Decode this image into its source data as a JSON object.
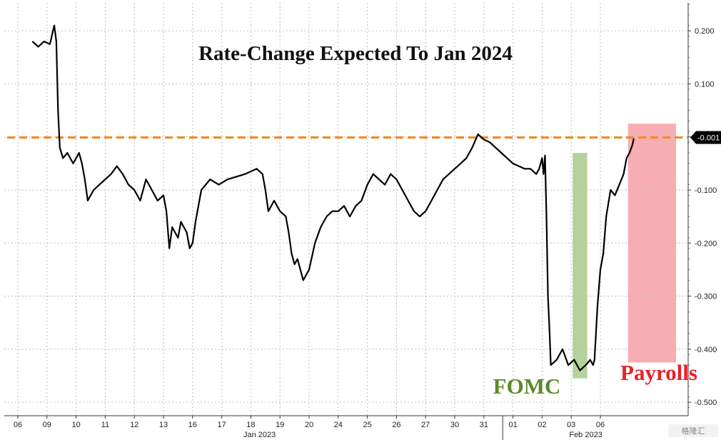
{
  "chart_data": {
    "type": "line",
    "title": "Rate-Change Expected To Jan 2024",
    "ylim": [
      -0.52,
      0.25
    ],
    "yticks": [
      0.2,
      0.1,
      0.0,
      -0.1,
      -0.2,
      -0.3,
      -0.4,
      -0.5
    ],
    "ytick_labels": [
      "0.200",
      "0.100",
      "",
      "-0.100",
      "-0.200",
      "-0.300",
      "-0.400",
      "-0.500"
    ],
    "x_day_labels": [
      "06",
      "09",
      "10",
      "11",
      "12",
      "13",
      "16",
      "17",
      "18",
      "19",
      "20",
      "24",
      "25",
      "26",
      "27",
      "30",
      "31",
      "01",
      "02",
      "03",
      "06"
    ],
    "month_labels": [
      "Jan 2023",
      "Feb 2023"
    ],
    "last_value_label": "-0.001",
    "reference_line": {
      "value": -0.001,
      "color": "#f08a24",
      "style": "dashed"
    },
    "annotations": [
      {
        "label": "FOMC",
        "x_start": 19.05,
        "x_end": 19.55,
        "color": "#a9c98a"
      },
      {
        "label": "Payrolls",
        "x_start": 20.95,
        "x_end": 22.6,
        "color": "#f4a0a6"
      }
    ],
    "series": [
      {
        "color": "#000000",
        "points": [
          [
            -0.5,
            0.18
          ],
          [
            -0.3,
            0.17
          ],
          [
            -0.1,
            0.18
          ],
          [
            0.1,
            0.175
          ],
          [
            0.25,
            0.21
          ],
          [
            0.32,
            0.18
          ],
          [
            0.38,
            0.05
          ],
          [
            0.44,
            -0.02
          ],
          [
            0.55,
            -0.04
          ],
          [
            0.7,
            -0.03
          ],
          [
            0.9,
            -0.05
          ],
          [
            1.0,
            -0.04
          ],
          [
            1.1,
            -0.03
          ],
          [
            1.2,
            -0.05
          ],
          [
            1.3,
            -0.08
          ],
          [
            1.4,
            -0.12
          ],
          [
            1.6,
            -0.1
          ],
          [
            1.8,
            -0.09
          ],
          [
            2.0,
            -0.08
          ],
          [
            2.2,
            -0.07
          ],
          [
            2.4,
            -0.055
          ],
          [
            2.6,
            -0.07
          ],
          [
            2.8,
            -0.09
          ],
          [
            3.0,
            -0.1
          ],
          [
            3.2,
            -0.12
          ],
          [
            3.4,
            -0.08
          ],
          [
            3.6,
            -0.1
          ],
          [
            3.8,
            -0.12
          ],
          [
            4.0,
            -0.11
          ],
          [
            4.1,
            -0.14
          ],
          [
            4.2,
            -0.21
          ],
          [
            4.3,
            -0.17
          ],
          [
            4.5,
            -0.19
          ],
          [
            4.6,
            -0.16
          ],
          [
            4.8,
            -0.18
          ],
          [
            4.9,
            -0.21
          ],
          [
            5.0,
            -0.2
          ],
          [
            5.1,
            -0.16
          ],
          [
            5.3,
            -0.1
          ],
          [
            5.6,
            -0.08
          ],
          [
            5.9,
            -0.09
          ],
          [
            6.2,
            -0.08
          ],
          [
            6.5,
            -0.075
          ],
          [
            6.8,
            -0.07
          ],
          [
            7.0,
            -0.065
          ],
          [
            7.2,
            -0.06
          ],
          [
            7.4,
            -0.07
          ],
          [
            7.5,
            -0.1
          ],
          [
            7.6,
            -0.14
          ],
          [
            7.8,
            -0.12
          ],
          [
            8.0,
            -0.14
          ],
          [
            8.2,
            -0.15
          ],
          [
            8.3,
            -0.18
          ],
          [
            8.4,
            -0.22
          ],
          [
            8.5,
            -0.24
          ],
          [
            8.6,
            -0.23
          ],
          [
            8.8,
            -0.27
          ],
          [
            8.9,
            -0.26
          ],
          [
            9.0,
            -0.25
          ],
          [
            9.2,
            -0.2
          ],
          [
            9.4,
            -0.17
          ],
          [
            9.6,
            -0.15
          ],
          [
            9.8,
            -0.14
          ],
          [
            10.0,
            -0.14
          ],
          [
            10.2,
            -0.13
          ],
          [
            10.4,
            -0.15
          ],
          [
            10.6,
            -0.13
          ],
          [
            10.8,
            -0.12
          ],
          [
            11.0,
            -0.09
          ],
          [
            11.2,
            -0.07
          ],
          [
            11.4,
            -0.08
          ],
          [
            11.6,
            -0.09
          ],
          [
            11.8,
            -0.07
          ],
          [
            12.0,
            -0.08
          ],
          [
            12.2,
            -0.1
          ],
          [
            12.4,
            -0.12
          ],
          [
            12.6,
            -0.14
          ],
          [
            12.8,
            -0.15
          ],
          [
            13.0,
            -0.14
          ],
          [
            13.2,
            -0.12
          ],
          [
            13.4,
            -0.1
          ],
          [
            13.6,
            -0.08
          ],
          [
            13.8,
            -0.07
          ],
          [
            14.0,
            -0.06
          ],
          [
            14.2,
            -0.05
          ],
          [
            14.4,
            -0.04
          ],
          [
            14.6,
            -0.02
          ],
          [
            14.8,
            0.005
          ],
          [
            15.0,
            -0.005
          ],
          [
            15.2,
            -0.01
          ],
          [
            15.4,
            -0.02
          ],
          [
            15.6,
            -0.03
          ],
          [
            15.8,
            -0.04
          ],
          [
            16.0,
            -0.05
          ],
          [
            16.2,
            -0.055
          ],
          [
            16.4,
            -0.06
          ],
          [
            16.6,
            -0.06
          ],
          [
            16.8,
            -0.07
          ],
          [
            16.9,
            -0.06
          ],
          [
            17.0,
            -0.04
          ],
          [
            17.05,
            -0.07
          ],
          [
            17.1,
            -0.035
          ],
          [
            17.15,
            -0.15
          ],
          [
            17.2,
            -0.3
          ],
          [
            17.25,
            -0.36
          ],
          [
            17.3,
            -0.43
          ],
          [
            17.5,
            -0.42
          ],
          [
            17.7,
            -0.4
          ],
          [
            17.9,
            -0.43
          ],
          [
            18.1,
            -0.42
          ],
          [
            18.3,
            -0.44
          ],
          [
            18.5,
            -0.43
          ],
          [
            18.65,
            -0.42
          ],
          [
            18.75,
            -0.43
          ],
          [
            18.8,
            -0.42
          ],
          [
            18.9,
            -0.32
          ],
          [
            19.0,
            -0.25
          ],
          [
            19.1,
            -0.22
          ],
          [
            19.2,
            -0.15
          ],
          [
            19.35,
            -0.1
          ],
          [
            19.5,
            -0.11
          ],
          [
            19.65,
            -0.09
          ],
          [
            19.8,
            -0.07
          ],
          [
            19.9,
            -0.04
          ],
          [
            20.0,
            -0.03
          ],
          [
            20.1,
            -0.015
          ],
          [
            20.15,
            -0.003
          ]
        ]
      }
    ]
  },
  "watermark": "格隆汇"
}
